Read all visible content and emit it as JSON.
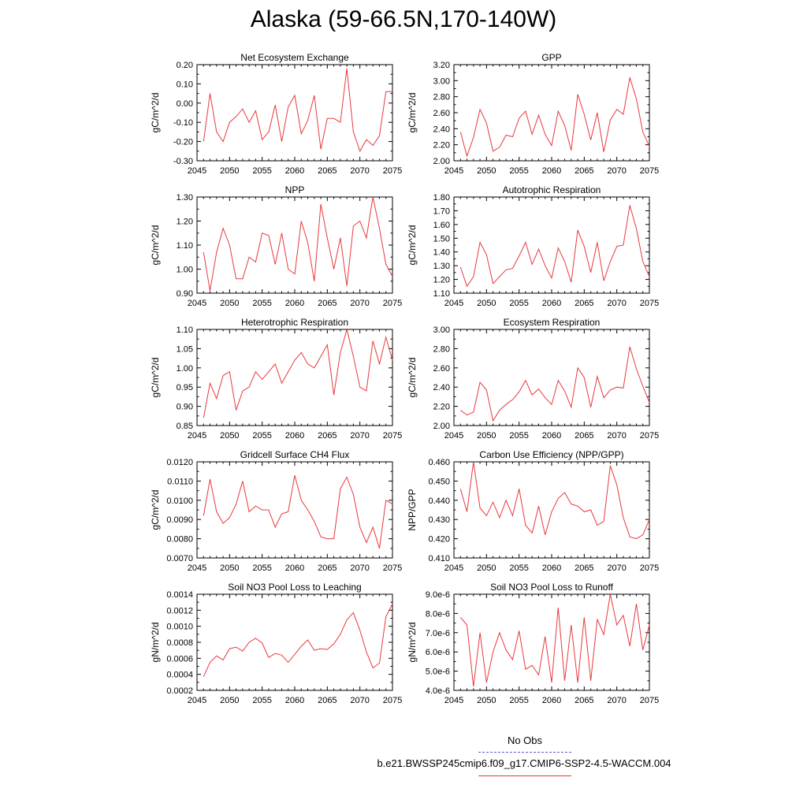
{
  "title": "Alaska (59-66.5N,170-140W)",
  "legend": {
    "obs_label": "No Obs",
    "model_label": "b.e21.BWSSP245cmip6.f09_g17.CMIP6-SSP2-4.5-WACCM.004",
    "obs_color": "#5b5bd6",
    "model_color": "#e8383d"
  },
  "chart_data": [
    {
      "type": "line",
      "title": "Net Ecosystem Exchange",
      "ylabel": "gC/m^2/d",
      "xlim": [
        2045,
        2075
      ],
      "xticks": [
        2045,
        2050,
        2055,
        2060,
        2065,
        2070,
        2075
      ],
      "ylim": [
        -0.3,
        0.2
      ],
      "yticks": [
        "-0.30",
        "-0.20",
        "-0.10",
        "0.00",
        "0.10",
        "0.20"
      ],
      "x": [
        2046,
        2047,
        2048,
        2049,
        2050,
        2051,
        2052,
        2053,
        2054,
        2055,
        2056,
        2057,
        2058,
        2059,
        2060,
        2061,
        2062,
        2063,
        2064,
        2065,
        2066,
        2067,
        2068,
        2069,
        2070,
        2071,
        2072,
        2073,
        2074,
        2075
      ],
      "values": [
        -0.2,
        0.05,
        -0.15,
        -0.2,
        -0.1,
        -0.07,
        -0.03,
        -0.1,
        -0.04,
        -0.19,
        -0.15,
        -0.01,
        -0.2,
        -0.02,
        0.04,
        -0.16,
        -0.09,
        0.04,
        -0.24,
        -0.08,
        -0.08,
        -0.1,
        0.18,
        -0.15,
        -0.25,
        -0.19,
        -0.22,
        -0.17,
        0.06,
        0.06
      ]
    },
    {
      "type": "line",
      "title": "GPP",
      "ylabel": "gC/m^2/d",
      "xlim": [
        2045,
        2075
      ],
      "xticks": [
        2045,
        2050,
        2055,
        2060,
        2065,
        2070,
        2075
      ],
      "ylim": [
        2.0,
        3.2
      ],
      "yticks": [
        "2.00",
        "2.20",
        "2.40",
        "2.60",
        "2.80",
        "3.00",
        "3.20"
      ],
      "x": [
        2046,
        2047,
        2048,
        2049,
        2050,
        2051,
        2052,
        2053,
        2054,
        2055,
        2056,
        2057,
        2058,
        2059,
        2060,
        2061,
        2062,
        2063,
        2064,
        2065,
        2066,
        2067,
        2068,
        2069,
        2070,
        2071,
        2072,
        2073,
        2074,
        2075
      ],
      "values": [
        2.36,
        2.06,
        2.29,
        2.64,
        2.47,
        2.12,
        2.17,
        2.32,
        2.3,
        2.53,
        2.62,
        2.33,
        2.57,
        2.33,
        2.19,
        2.62,
        2.44,
        2.13,
        2.83,
        2.58,
        2.26,
        2.6,
        2.11,
        2.51,
        2.64,
        2.58,
        3.04,
        2.77,
        2.36,
        2.18
      ]
    },
    {
      "type": "line",
      "title": "NPP",
      "ylabel": "gC/m^2/d",
      "xlim": [
        2045,
        2075
      ],
      "xticks": [
        2045,
        2050,
        2055,
        2060,
        2065,
        2070,
        2075
      ],
      "ylim": [
        0.9,
        1.3
      ],
      "yticks": [
        "0.90",
        "1.00",
        "1.10",
        "1.20",
        "1.30"
      ],
      "x": [
        2046,
        2047,
        2048,
        2049,
        2050,
        2051,
        2052,
        2053,
        2054,
        2055,
        2056,
        2057,
        2058,
        2059,
        2060,
        2061,
        2062,
        2063,
        2064,
        2065,
        2066,
        2067,
        2068,
        2069,
        2070,
        2071,
        2072,
        2073,
        2074,
        2075
      ],
      "values": [
        1.07,
        0.91,
        1.07,
        1.17,
        1.1,
        0.96,
        0.96,
        1.05,
        1.03,
        1.15,
        1.14,
        1.02,
        1.15,
        1.0,
        0.98,
        1.2,
        1.11,
        0.95,
        1.27,
        1.13,
        1.0,
        1.13,
        0.93,
        1.18,
        1.2,
        1.13,
        1.3,
        1.17,
        1.02,
        0.97
      ]
    },
    {
      "type": "line",
      "title": "Autotrophic Respiration",
      "ylabel": "gC/m^2/d",
      "xlim": [
        2045,
        2075
      ],
      "xticks": [
        2045,
        2050,
        2055,
        2060,
        2065,
        2070,
        2075
      ],
      "ylim": [
        1.1,
        1.8
      ],
      "yticks": [
        "1.10",
        "1.20",
        "1.30",
        "1.40",
        "1.50",
        "1.60",
        "1.70",
        "1.80"
      ],
      "x": [
        2046,
        2047,
        2048,
        2049,
        2050,
        2051,
        2052,
        2053,
        2054,
        2055,
        2056,
        2057,
        2058,
        2059,
        2060,
        2061,
        2062,
        2063,
        2064,
        2065,
        2066,
        2067,
        2068,
        2069,
        2070,
        2071,
        2072,
        2073,
        2074,
        2075
      ],
      "values": [
        1.29,
        1.15,
        1.22,
        1.47,
        1.38,
        1.17,
        1.22,
        1.27,
        1.28,
        1.37,
        1.47,
        1.31,
        1.42,
        1.3,
        1.21,
        1.43,
        1.33,
        1.18,
        1.56,
        1.44,
        1.25,
        1.47,
        1.19,
        1.33,
        1.44,
        1.45,
        1.74,
        1.57,
        1.33,
        1.22
      ]
    },
    {
      "type": "line",
      "title": "Heterotrophic Respiration",
      "ylabel": "gC/m^2/d",
      "xlim": [
        2045,
        2075
      ],
      "xticks": [
        2045,
        2050,
        2055,
        2060,
        2065,
        2070,
        2075
      ],
      "ylim": [
        0.85,
        1.1
      ],
      "yticks": [
        "0.85",
        "0.90",
        "0.95",
        "1.00",
        "1.05",
        "1.10"
      ],
      "x": [
        2046,
        2047,
        2048,
        2049,
        2050,
        2051,
        2052,
        2053,
        2054,
        2055,
        2056,
        2057,
        2058,
        2059,
        2060,
        2061,
        2062,
        2063,
        2064,
        2065,
        2066,
        2067,
        2068,
        2069,
        2070,
        2071,
        2072,
        2073,
        2074,
        2075
      ],
      "values": [
        0.87,
        0.96,
        0.92,
        0.98,
        0.99,
        0.89,
        0.94,
        0.95,
        0.99,
        0.97,
        0.99,
        1.01,
        0.96,
        0.99,
        1.02,
        1.04,
        1.01,
        1.0,
        1.03,
        1.06,
        0.93,
        1.04,
        1.11,
        1.03,
        0.95,
        0.94,
        1.07,
        1.01,
        1.08,
        1.02
      ]
    },
    {
      "type": "line",
      "title": "Ecosystem Respiration",
      "ylabel": "gC/m^2/d",
      "xlim": [
        2045,
        2075
      ],
      "xticks": [
        2045,
        2050,
        2055,
        2060,
        2065,
        2070,
        2075
      ],
      "ylim": [
        2.0,
        3.0
      ],
      "yticks": [
        "2.00",
        "2.20",
        "2.40",
        "2.60",
        "2.80",
        "3.00"
      ],
      "x": [
        2046,
        2047,
        2048,
        2049,
        2050,
        2051,
        2052,
        2053,
        2054,
        2055,
        2056,
        2057,
        2058,
        2059,
        2060,
        2061,
        2062,
        2063,
        2064,
        2065,
        2066,
        2067,
        2068,
        2069,
        2070,
        2071,
        2072,
        2073,
        2074,
        2075
      ],
      "values": [
        2.16,
        2.11,
        2.14,
        2.45,
        2.37,
        2.05,
        2.16,
        2.22,
        2.27,
        2.35,
        2.47,
        2.32,
        2.38,
        2.29,
        2.22,
        2.47,
        2.36,
        2.19,
        2.6,
        2.5,
        2.19,
        2.51,
        2.29,
        2.37,
        2.4,
        2.39,
        2.82,
        2.59,
        2.41,
        2.24
      ]
    },
    {
      "type": "line",
      "title": "Gridcell Surface CH4 Flux",
      "ylabel": "gC/m^2/d",
      "xlim": [
        2045,
        2075
      ],
      "xticks": [
        2045,
        2050,
        2055,
        2060,
        2065,
        2070,
        2075
      ],
      "ylim": [
        0.007,
        0.012
      ],
      "yticks": [
        "0.0070",
        "0.0080",
        "0.0090",
        "0.0100",
        "0.0110",
        "0.0120"
      ],
      "x": [
        2046,
        2047,
        2048,
        2049,
        2050,
        2051,
        2052,
        2053,
        2054,
        2055,
        2056,
        2057,
        2058,
        2059,
        2060,
        2061,
        2062,
        2063,
        2064,
        2065,
        2066,
        2067,
        2068,
        2069,
        2070,
        2071,
        2072,
        2073,
        2074,
        2075
      ],
      "values": [
        0.0092,
        0.0111,
        0.0094,
        0.0088,
        0.0091,
        0.0098,
        0.011,
        0.0094,
        0.0097,
        0.0095,
        0.0095,
        0.0086,
        0.0093,
        0.0094,
        0.0113,
        0.01,
        0.0095,
        0.0089,
        0.0081,
        0.008,
        0.008,
        0.0106,
        0.0112,
        0.0103,
        0.0086,
        0.0078,
        0.0086,
        0.0075,
        0.01,
        0.0098
      ]
    },
    {
      "type": "line",
      "title": "Carbon Use Efficiency (NPP/GPP)",
      "ylabel": "NPP/GPP",
      "xlim": [
        2045,
        2075
      ],
      "xticks": [
        2045,
        2050,
        2055,
        2060,
        2065,
        2070,
        2075
      ],
      "ylim": [
        0.41,
        0.46
      ],
      "yticks": [
        "0.410",
        "0.420",
        "0.430",
        "0.440",
        "0.450",
        "0.460"
      ],
      "x": [
        2046,
        2047,
        2048,
        2049,
        2050,
        2051,
        2052,
        2053,
        2054,
        2055,
        2056,
        2057,
        2058,
        2059,
        2060,
        2061,
        2062,
        2063,
        2064,
        2065,
        2066,
        2067,
        2068,
        2069,
        2070,
        2071,
        2072,
        2073,
        2074,
        2075
      ],
      "values": [
        0.446,
        0.434,
        0.46,
        0.436,
        0.432,
        0.439,
        0.431,
        0.44,
        0.432,
        0.446,
        0.427,
        0.423,
        0.437,
        0.422,
        0.434,
        0.441,
        0.444,
        0.438,
        0.437,
        0.434,
        0.435,
        0.427,
        0.429,
        0.458,
        0.448,
        0.431,
        0.421,
        0.42,
        0.422,
        0.43
      ]
    },
    {
      "type": "line",
      "title": "Soil NO3 Pool Loss to Leaching",
      "ylabel": "gN/m^2/d",
      "xlim": [
        2045,
        2075
      ],
      "xticks": [
        2045,
        2050,
        2055,
        2060,
        2065,
        2070,
        2075
      ],
      "ylim": [
        0.0002,
        0.0014
      ],
      "yticks": [
        "0.0002",
        "0.0004",
        "0.0006",
        "0.0008",
        "0.0010",
        "0.0012",
        "0.0014"
      ],
      "x": [
        2046,
        2047,
        2048,
        2049,
        2050,
        2051,
        2052,
        2053,
        2054,
        2055,
        2056,
        2057,
        2058,
        2059,
        2060,
        2061,
        2062,
        2063,
        2064,
        2065,
        2066,
        2067,
        2068,
        2069,
        2070,
        2071,
        2072,
        2073,
        2074,
        2075
      ],
      "values": [
        0.00037,
        0.00055,
        0.00063,
        0.00058,
        0.00072,
        0.00074,
        0.00069,
        0.0008,
        0.00085,
        0.00079,
        0.00061,
        0.00066,
        0.00064,
        0.00055,
        0.00065,
        0.00075,
        0.00083,
        0.0007,
        0.00072,
        0.00071,
        0.00078,
        0.0009,
        0.00108,
        0.00117,
        0.00095,
        0.00068,
        0.00048,
        0.00054,
        0.00112,
        0.00128
      ]
    },
    {
      "type": "line",
      "title": "Soil NO3 Pool Loss to Runoff",
      "ylabel": "gN/m^2/d",
      "xlim": [
        2045,
        2075
      ],
      "xticks": [
        2045,
        2050,
        2055,
        2060,
        2065,
        2070,
        2075
      ],
      "ylim": [
        4e-06,
        9e-06
      ],
      "yticks": [
        "4.0e-6",
        "5.0e-6",
        "6.0e-6",
        "7.0e-6",
        "8.0e-6",
        "9.0e-6"
      ],
      "x": [
        2046,
        2047,
        2048,
        2049,
        2050,
        2051,
        2052,
        2053,
        2054,
        2055,
        2056,
        2057,
        2058,
        2059,
        2060,
        2061,
        2062,
        2063,
        2064,
        2065,
        2066,
        2067,
        2068,
        2069,
        2070,
        2071,
        2072,
        2073,
        2074,
        2075
      ],
      "values": [
        7.8e-06,
        7.4e-06,
        4.2e-06,
        7e-06,
        4.4e-06,
        6e-06,
        7e-06,
        6.1e-06,
        5.6e-06,
        7.1e-06,
        5.1e-06,
        5.3e-06,
        4.8e-06,
        6.8e-06,
        4.4e-06,
        8.3e-06,
        4.5e-06,
        7.4e-06,
        4.4e-06,
        7.8e-06,
        4.5e-06,
        7.7e-06,
        6.9e-06,
        9e-06,
        7.4e-06,
        7.9e-06,
        6.3e-06,
        8.5e-06,
        6.1e-06,
        7.4e-06
      ]
    }
  ]
}
